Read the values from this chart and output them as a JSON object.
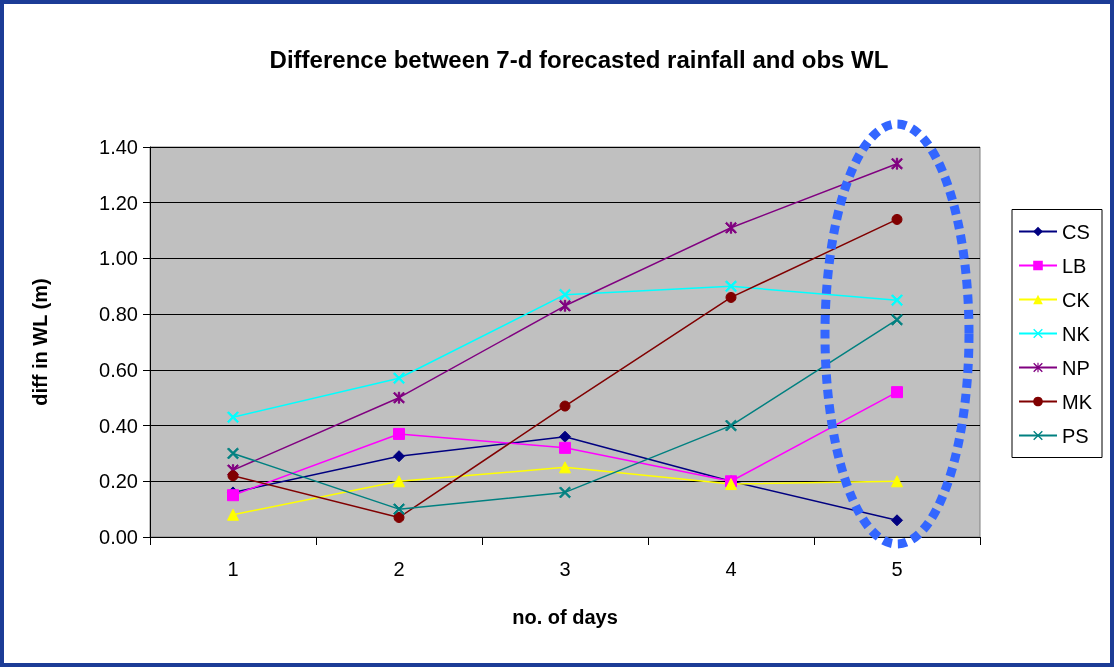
{
  "chart_data": {
    "type": "line",
    "title": "Difference between 7-d forecasted rainfall and obs WL",
    "xlabel": "no. of days",
    "ylabel": "diff in WL (m)",
    "categories": [
      "1",
      "2",
      "3",
      "4",
      "5"
    ],
    "series": [
      {
        "name": "CS",
        "color": "#000080",
        "marker": "diamond",
        "values": [
          0.16,
          0.29,
          0.36,
          0.2,
          0.06
        ]
      },
      {
        "name": "LB",
        "color": "#ff00ff",
        "marker": "square",
        "values": [
          0.15,
          0.37,
          0.32,
          0.2,
          0.52
        ]
      },
      {
        "name": "CK",
        "color": "#ffff00",
        "marker": "triangle",
        "values": [
          0.08,
          0.2,
          0.25,
          0.19,
          0.2
        ]
      },
      {
        "name": "NK",
        "color": "#00ffff",
        "marker": "cross",
        "values": [
          0.43,
          0.57,
          0.87,
          0.9,
          0.85
        ]
      },
      {
        "name": "NP",
        "color": "#800080",
        "marker": "star",
        "values": [
          0.24,
          0.5,
          0.83,
          1.11,
          1.34
        ]
      },
      {
        "name": "MK",
        "color": "#800000",
        "marker": "circle",
        "values": [
          0.22,
          0.07,
          0.47,
          0.86,
          1.14
        ]
      },
      {
        "name": "PS",
        "color": "#008080",
        "marker": "cross",
        "values": [
          0.3,
          0.1,
          0.16,
          0.4,
          0.78
        ]
      }
    ],
    "ylim": [
      0,
      1.4
    ],
    "yticks": [
      {
        "value": 0,
        "label": "0.00"
      },
      {
        "value": 0.2,
        "label": "0.20"
      },
      {
        "value": 0.4,
        "label": "0.40"
      },
      {
        "value": 0.6,
        "label": "0.60"
      },
      {
        "value": 0.8,
        "label": "0.80"
      },
      {
        "value": 1.0,
        "label": "1.00"
      },
      {
        "value": 1.2,
        "label": "1.20"
      },
      {
        "value": 1.4,
        "label": "1.40"
      }
    ],
    "grid": "y",
    "legend": "right",
    "line_style": "solid"
  }
}
